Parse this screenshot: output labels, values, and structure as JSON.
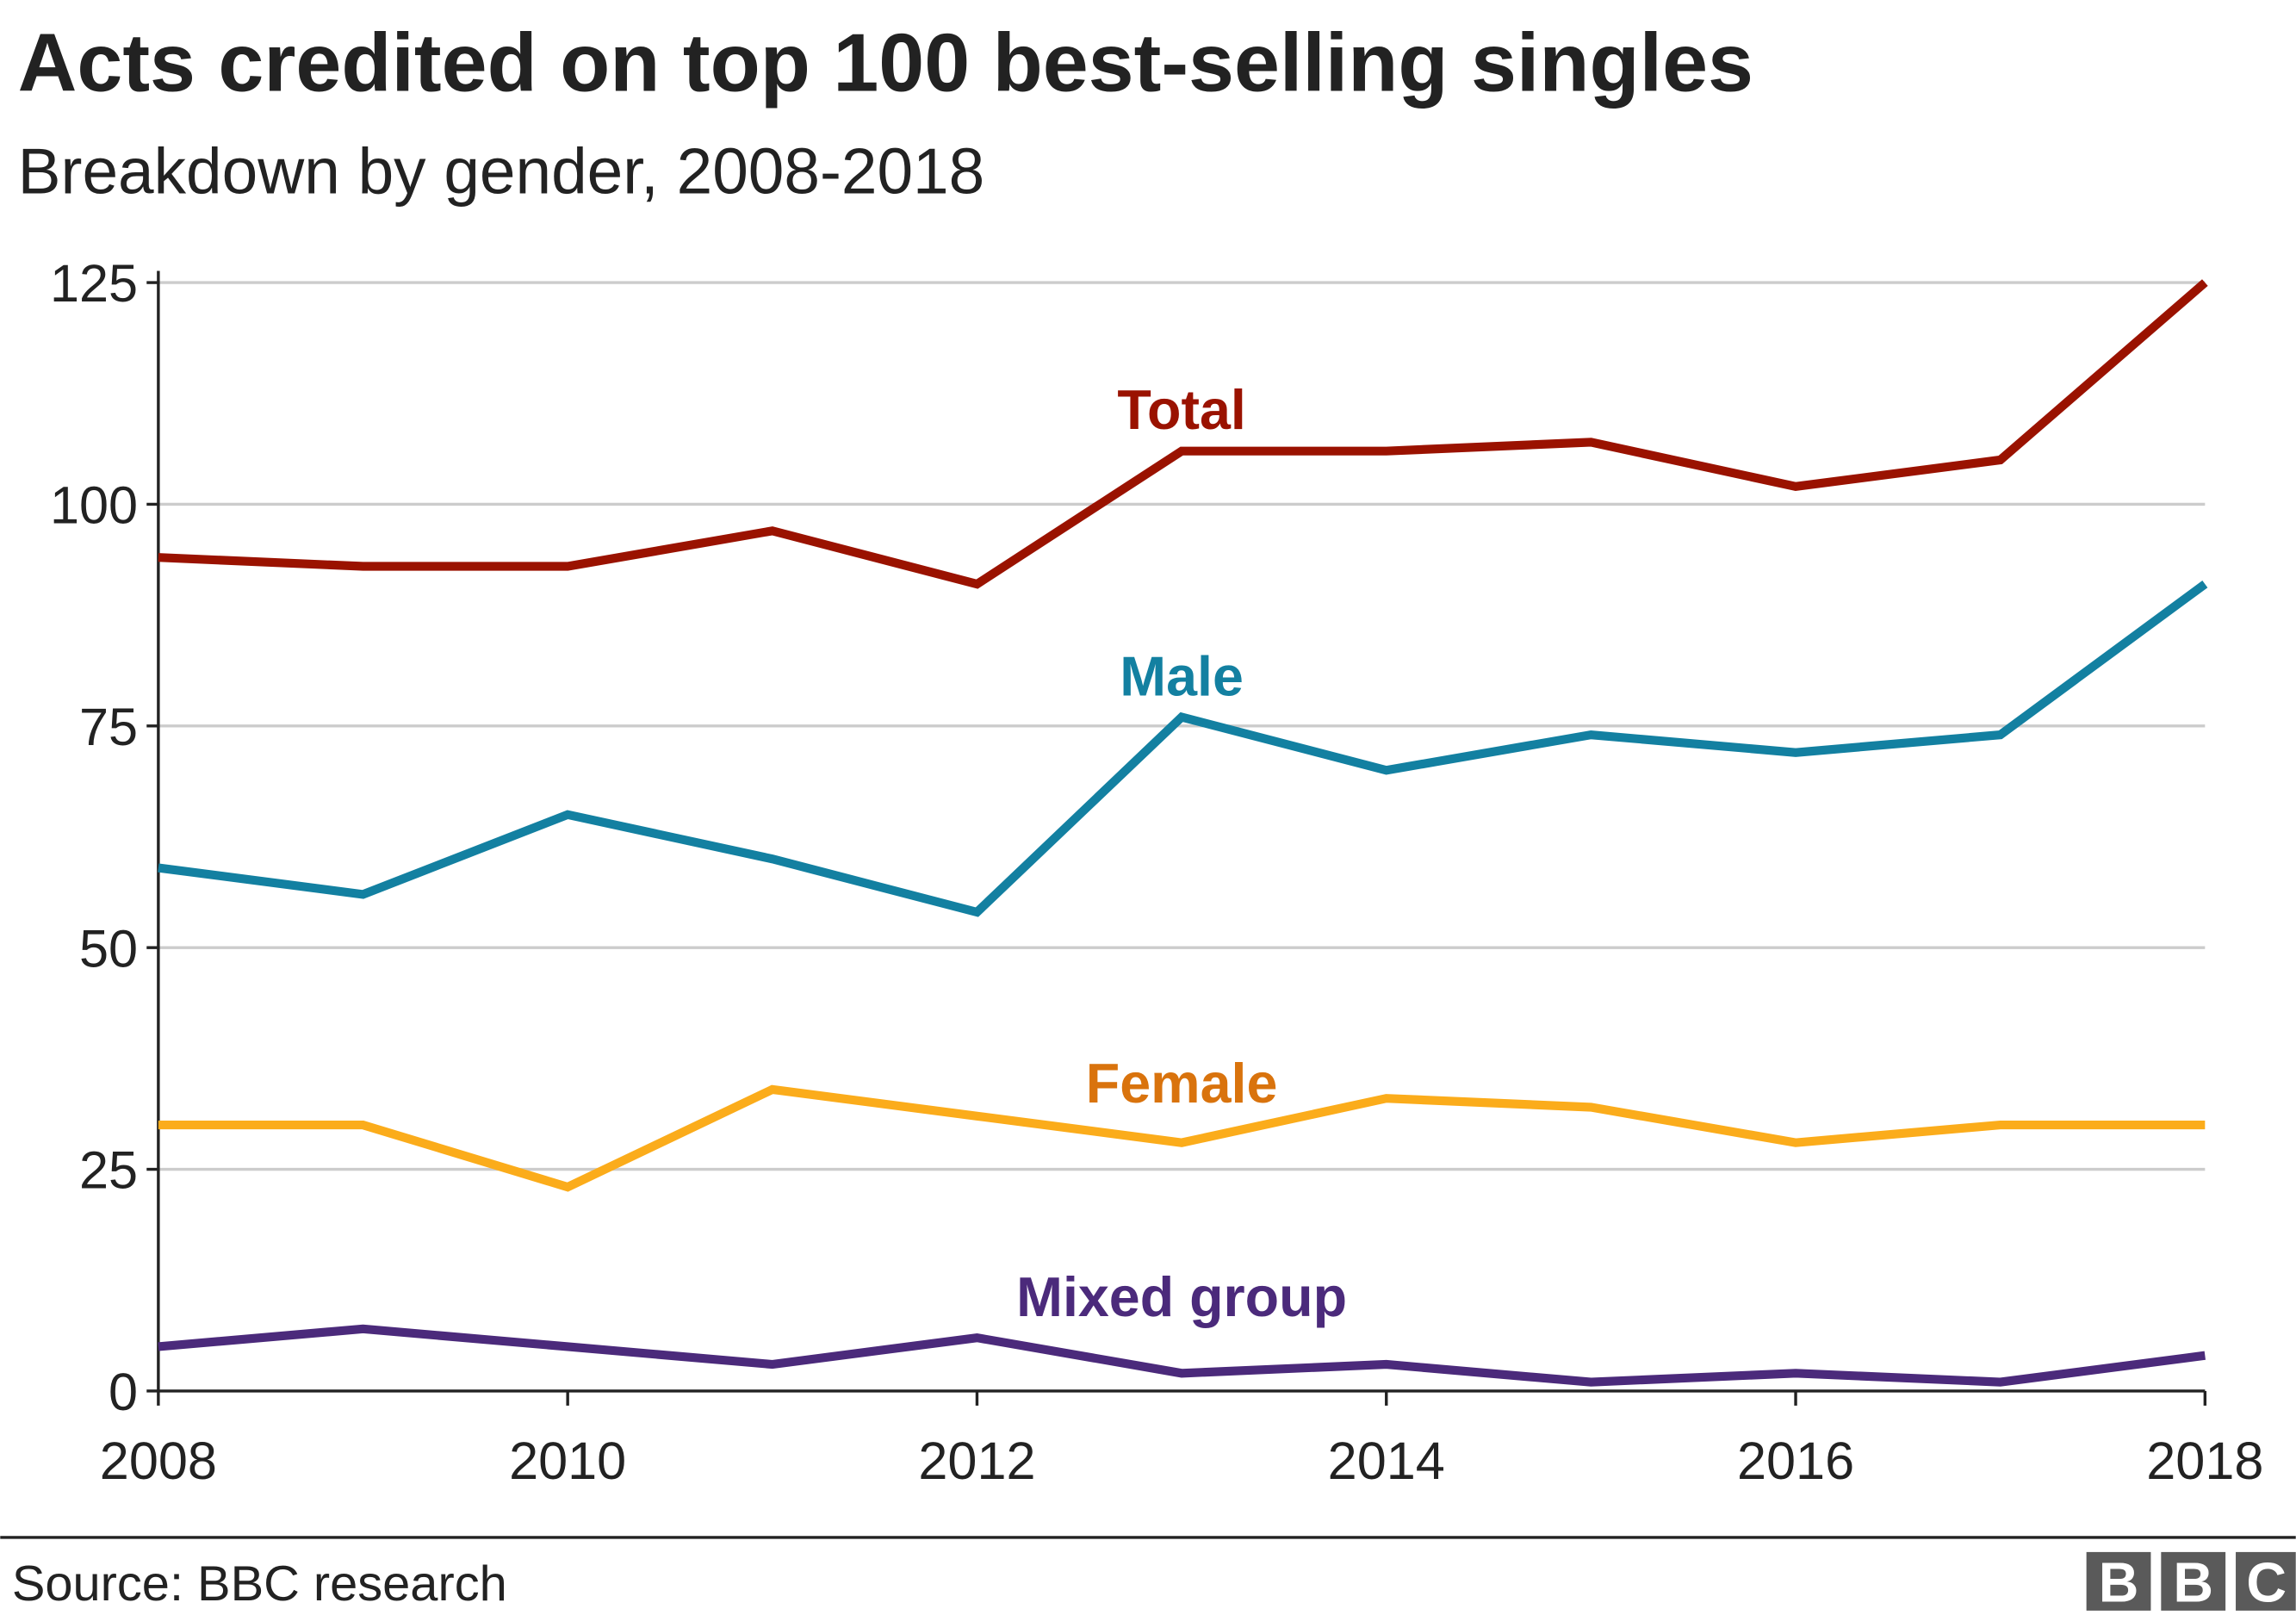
{
  "chart_data": {
    "type": "line",
    "title": "Acts credited on top 100 best-selling singles",
    "subtitle": "Breakdown by gender, 2008-2018",
    "xlabel": "",
    "ylabel": "",
    "x": [
      2008,
      2009,
      2010,
      2011,
      2012,
      2013,
      2014,
      2015,
      2016,
      2017,
      2018
    ],
    "xlim": [
      2008,
      2018
    ],
    "ylim": [
      0,
      125
    ],
    "x_ticks": [
      "2008",
      "2010",
      "2012",
      "2014",
      "2016",
      "2018"
    ],
    "y_ticks": [
      "0",
      "25",
      "50",
      "75",
      "100",
      "125"
    ],
    "grid": "horizontal",
    "legend": "inline labels",
    "series": [
      {
        "name": "Total",
        "color": "#9a1200",
        "label_color": "#9a1200",
        "values": [
          94,
          93,
          93,
          97,
          91,
          106,
          106,
          107,
          102,
          105,
          125
        ]
      },
      {
        "name": "Male",
        "color": "#1380a1",
        "label_color": "#1380a1",
        "values": [
          59,
          56,
          65,
          60,
          54,
          76,
          70,
          74,
          72,
          74,
          91
        ]
      },
      {
        "name": "Female",
        "color": "#fbac1b",
        "label_color": "#d9730d",
        "values": [
          30,
          30,
          23,
          34,
          31,
          28,
          33,
          32,
          28,
          30,
          30
        ]
      },
      {
        "name": "Mixed group",
        "color": "#4b2a7b",
        "label_color": "#4b2a7b",
        "values": [
          5,
          7,
          5,
          3,
          6,
          2,
          3,
          1,
          2,
          1,
          4
        ]
      }
    ]
  },
  "footer": {
    "source": "Source: BBC research",
    "logo": [
      "B",
      "B",
      "C"
    ]
  }
}
